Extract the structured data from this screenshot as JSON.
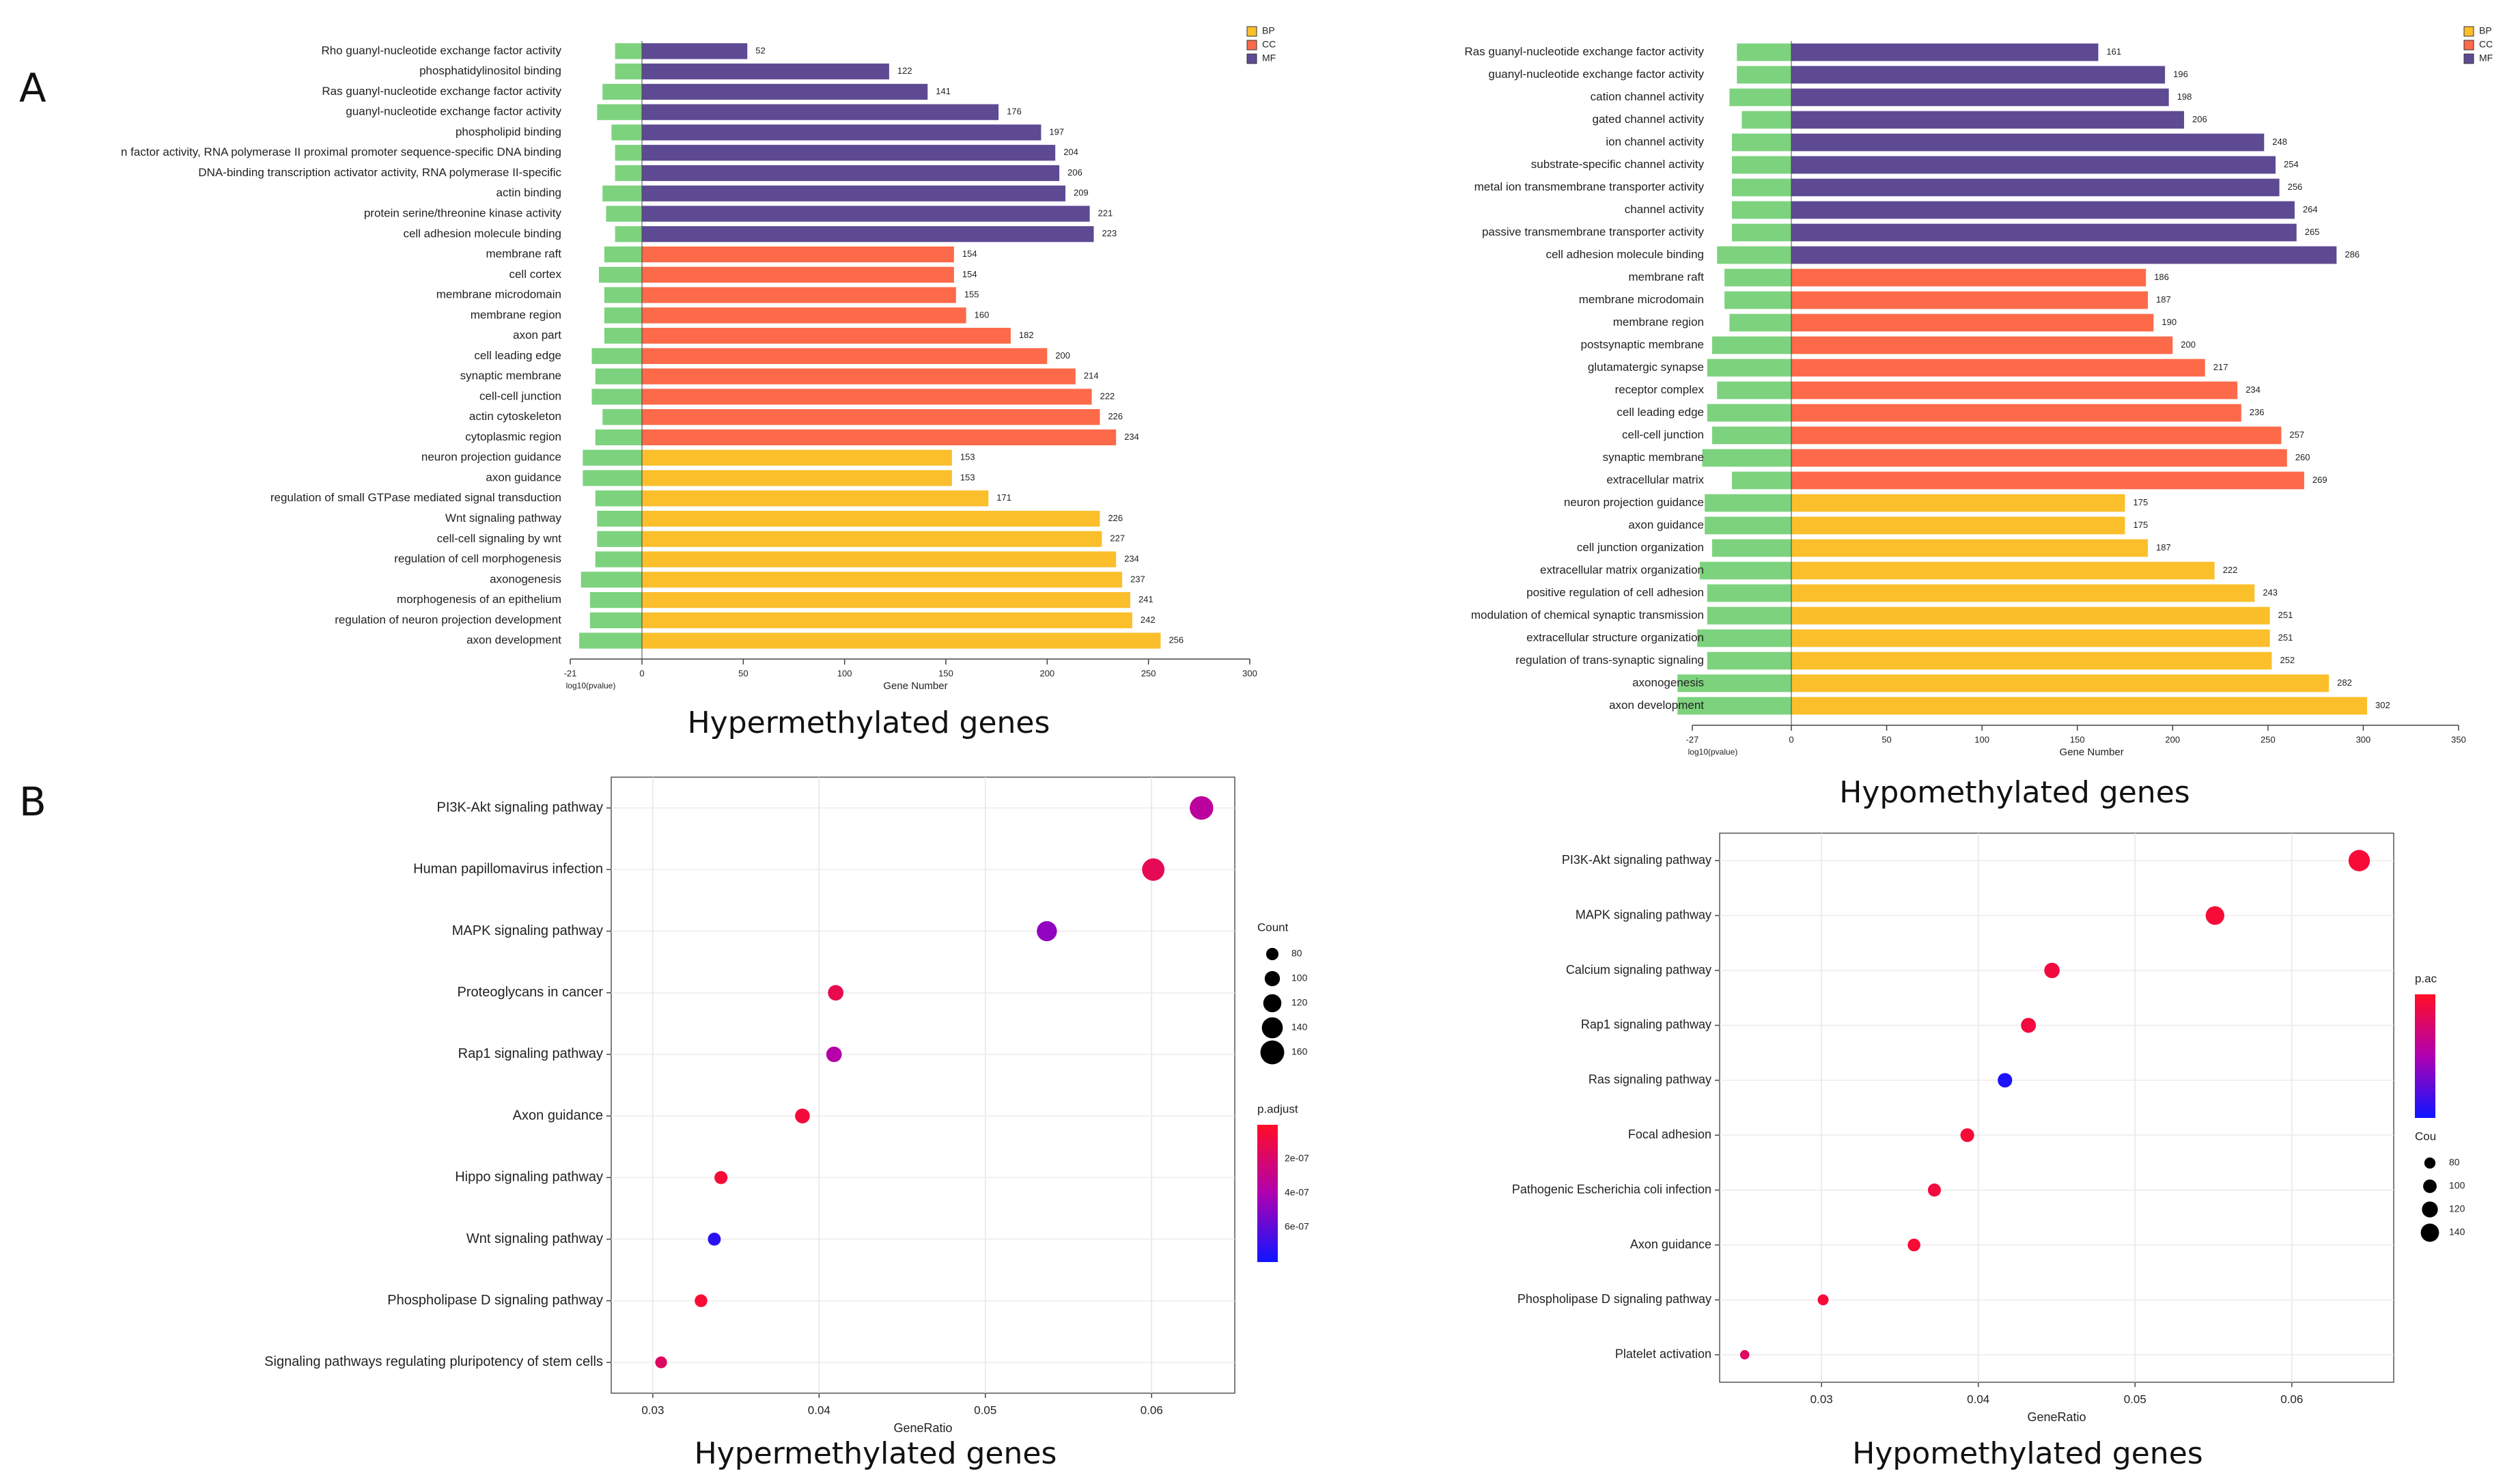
{
  "panel_labels": [
    "A",
    "B"
  ],
  "colors": {
    "bp": "#FBBF2C",
    "cc": "#FC6A49",
    "mf": "#5E4A93",
    "log_bar": "#7DD27E",
    "padj_high": "#FF0D2A",
    "padj_mid": "#B000B0",
    "padj_low": "#1414FF",
    "dot_border": "#888888"
  },
  "chart_data": [
    {
      "type": "bar",
      "panel": "A",
      "caption": "Hypermethylated genes",
      "xlabel": "Gene Number",
      "neg_axis_label": "log10(pvalue)",
      "neg_tick_label": "-21",
      "xlim": [
        0,
        300
      ],
      "xticks": [
        0,
        50,
        100,
        150,
        200,
        250,
        300
      ],
      "legend": [
        "BP",
        "CC",
        "MF"
      ],
      "legend_position": "top-right",
      "categories": [
        {
          "term": "Rho guanyl-nucleotide exchange factor activity",
          "group": "MF",
          "count": 52,
          "neglog": 15
        },
        {
          "term": "phosphatidylinositol binding",
          "group": "MF",
          "count": 122,
          "neglog": 15
        },
        {
          "term": "Ras guanyl-nucleotide exchange factor activity",
          "group": "MF",
          "count": 141,
          "neglog": 22
        },
        {
          "term": "guanyl-nucleotide exchange factor activity",
          "group": "MF",
          "count": 176,
          "neglog": 25
        },
        {
          "term": "phospholipid binding",
          "group": "MF",
          "count": 197,
          "neglog": 17
        },
        {
          "term": "n factor activity, RNA polymerase II proximal promoter sequence-specific DNA binding",
          "group": "MF",
          "count": 204,
          "neglog": 15
        },
        {
          "term": "DNA-binding transcription activator activity, RNA polymerase II-specific",
          "group": "MF",
          "count": 206,
          "neglog": 15
        },
        {
          "term": "actin binding",
          "group": "MF",
          "count": 209,
          "neglog": 22
        },
        {
          "term": "protein serine/threonine kinase activity",
          "group": "MF",
          "count": 221,
          "neglog": 20
        },
        {
          "term": "cell adhesion molecule binding",
          "group": "MF",
          "count": 223,
          "neglog": 15
        },
        {
          "term": "membrane raft",
          "group": "CC",
          "count": 154,
          "neglog": 21
        },
        {
          "term": "cell cortex",
          "group": "CC",
          "count": 154,
          "neglog": 24
        },
        {
          "term": "membrane microdomain",
          "group": "CC",
          "count": 155,
          "neglog": 21
        },
        {
          "term": "membrane region",
          "group": "CC",
          "count": 160,
          "neglog": 21
        },
        {
          "term": "axon part",
          "group": "CC",
          "count": 182,
          "neglog": 21
        },
        {
          "term": "cell leading edge",
          "group": "CC",
          "count": 200,
          "neglog": 28
        },
        {
          "term": "synaptic membrane",
          "group": "CC",
          "count": 214,
          "neglog": 26
        },
        {
          "term": "cell-cell junction",
          "group": "CC",
          "count": 222,
          "neglog": 28
        },
        {
          "term": "actin cytoskeleton",
          "group": "CC",
          "count": 226,
          "neglog": 22
        },
        {
          "term": "cytoplasmic region",
          "group": "CC",
          "count": 234,
          "neglog": 26
        },
        {
          "term": "neuron projection guidance",
          "group": "BP",
          "count": 153,
          "neglog": 33
        },
        {
          "term": "axon guidance",
          "group": "BP",
          "count": 153,
          "neglog": 33
        },
        {
          "term": "regulation of small GTPase mediated signal transduction",
          "group": "BP",
          "count": 171,
          "neglog": 26
        },
        {
          "term": "Wnt signaling pathway",
          "group": "BP",
          "count": 226,
          "neglog": 25
        },
        {
          "term": "cell-cell signaling by wnt",
          "group": "BP",
          "count": 227,
          "neglog": 25
        },
        {
          "term": "regulation of cell morphogenesis",
          "group": "BP",
          "count": 234,
          "neglog": 26
        },
        {
          "term": "axonogenesis",
          "group": "BP",
          "count": 237,
          "neglog": 34
        },
        {
          "term": "morphogenesis of an epithelium",
          "group": "BP",
          "count": 241,
          "neglog": 29
        },
        {
          "term": "regulation of neuron projection development",
          "group": "BP",
          "count": 242,
          "neglog": 29
        },
        {
          "term": "axon development",
          "group": "BP",
          "count": 256,
          "neglog": 35
        }
      ]
    },
    {
      "type": "bar",
      "panel": "A",
      "caption": "Hypomethylated genes",
      "xlabel": "Gene Number",
      "neg_axis_label": "log10(pvalue)",
      "neg_tick_label": "-27",
      "xlim": [
        0,
        350
      ],
      "xticks": [
        0,
        50,
        100,
        150,
        200,
        250,
        300,
        350
      ],
      "legend": [
        "BP",
        "CC",
        "MF"
      ],
      "legend_position": "top-right",
      "categories": [
        {
          "term": "Ras guanyl-nucleotide exchange factor activity",
          "group": "MF",
          "count": 161,
          "neglog": 22
        },
        {
          "term": "guanyl-nucleotide exchange factor activity",
          "group": "MF",
          "count": 196,
          "neglog": 22
        },
        {
          "term": "cation channel activity",
          "group": "MF",
          "count": 198,
          "neglog": 25
        },
        {
          "term": "gated channel activity",
          "group": "MF",
          "count": 206,
          "neglog": 20
        },
        {
          "term": "ion channel activity",
          "group": "MF",
          "count": 248,
          "neglog": 24
        },
        {
          "term": "substrate-specific channel activity",
          "group": "MF",
          "count": 254,
          "neglog": 24
        },
        {
          "term": "metal ion transmembrane transporter activity",
          "group": "MF",
          "count": 256,
          "neglog": 24
        },
        {
          "term": "channel activity",
          "group": "MF",
          "count": 264,
          "neglog": 24
        },
        {
          "term": "passive transmembrane transporter activity",
          "group": "MF",
          "count": 265,
          "neglog": 24
        },
        {
          "term": "cell adhesion molecule binding",
          "group": "MF",
          "count": 286,
          "neglog": 30
        },
        {
          "term": "membrane raft",
          "group": "CC",
          "count": 186,
          "neglog": 27
        },
        {
          "term": "membrane microdomain",
          "group": "CC",
          "count": 187,
          "neglog": 27
        },
        {
          "term": "membrane region",
          "group": "CC",
          "count": 190,
          "neglog": 25
        },
        {
          "term": "postsynaptic membrane",
          "group": "CC",
          "count": 200,
          "neglog": 32
        },
        {
          "term": "glutamatergic synapse",
          "group": "CC",
          "count": 217,
          "neglog": 34
        },
        {
          "term": "receptor complex",
          "group": "CC",
          "count": 234,
          "neglog": 30
        },
        {
          "term": "cell leading edge",
          "group": "CC",
          "count": 236,
          "neglog": 34
        },
        {
          "term": "cell-cell junction",
          "group": "CC",
          "count": 257,
          "neglog": 32
        },
        {
          "term": "synaptic membrane",
          "group": "CC",
          "count": 260,
          "neglog": 36
        },
        {
          "term": "extracellular matrix",
          "group": "CC",
          "count": 269,
          "neglog": 24
        },
        {
          "term": "neuron projection guidance",
          "group": "BP",
          "count": 175,
          "neglog": 35
        },
        {
          "term": "axon guidance",
          "group": "BP",
          "count": 175,
          "neglog": 35
        },
        {
          "term": "cell junction organization",
          "group": "BP",
          "count": 187,
          "neglog": 32
        },
        {
          "term": "extracellular matrix organization",
          "group": "BP",
          "count": 222,
          "neglog": 37
        },
        {
          "term": "positive regulation of cell adhesion",
          "group": "BP",
          "count": 243,
          "neglog": 34
        },
        {
          "term": "modulation of chemical synaptic transmission",
          "group": "BP",
          "count": 251,
          "neglog": 34
        },
        {
          "term": "extracellular structure organization",
          "group": "BP",
          "count": 251,
          "neglog": 38
        },
        {
          "term": "regulation of trans-synaptic signaling",
          "group": "BP",
          "count": 252,
          "neglog": 34
        },
        {
          "term": "axonogenesis",
          "group": "BP",
          "count": 282,
          "neglog": 46
        },
        {
          "term": "axon development",
          "group": "BP",
          "count": 302,
          "neglog": 46
        }
      ]
    },
    {
      "type": "scatter",
      "panel": "B",
      "caption": "Hypermethylated genes",
      "xlabel": "GeneRatio",
      "xlim": [
        0.0275,
        0.065
      ],
      "xticks": [
        0.03,
        0.04,
        0.05,
        0.06
      ],
      "xtick_labels": [
        "0.03",
        "0.04",
        "0.05",
        "0.06"
      ],
      "size_legend_title": "Count",
      "size_legend": [
        80,
        100,
        120,
        140,
        160
      ],
      "size_domain": [
        70,
        165
      ],
      "color_legend_title": "p.adjust",
      "color_legend_ticks": [
        "2e-07",
        "4e-07",
        "6e-07"
      ],
      "padj_range": [
        0,
        7.5e-07
      ],
      "points": [
        {
          "term": "PI3K-Akt signaling pathway",
          "ratio": 0.063,
          "count": 158,
          "padj": 3.2e-07
        },
        {
          "term": "Human papillomavirus infection",
          "ratio": 0.0601,
          "count": 150,
          "padj": 1.2e-07
        },
        {
          "term": "MAPK signaling pathway",
          "ratio": 0.0537,
          "count": 134,
          "padj": 4.5e-07
        },
        {
          "term": "Proteoglycans in cancer",
          "ratio": 0.041,
          "count": 102,
          "padj": 1e-07
        },
        {
          "term": "Rap1 signaling pathway",
          "ratio": 0.0409,
          "count": 102,
          "padj": 3.5e-07
        },
        {
          "term": "Axon guidance",
          "ratio": 0.039,
          "count": 97,
          "padj": 5e-08
        },
        {
          "term": "Hippo signaling pathway",
          "ratio": 0.0341,
          "count": 85,
          "padj": 4e-08
        },
        {
          "term": "Wnt signaling pathway",
          "ratio": 0.0337,
          "count": 84,
          "padj": 7e-07
        },
        {
          "term": "Phospholipase D signaling pathway",
          "ratio": 0.0329,
          "count": 82,
          "padj": 3e-08
        },
        {
          "term": "Signaling pathways regulating pluripotency of stem cells",
          "ratio": 0.0305,
          "count": 76,
          "padj": 1.5e-07
        }
      ]
    },
    {
      "type": "scatter",
      "panel": "B",
      "caption": "Hypomethylated genes",
      "xlabel": "GeneRatio",
      "xlim": [
        0.0235,
        0.0665
      ],
      "xticks": [
        0.03,
        0.04,
        0.05,
        0.06
      ],
      "xtick_labels": [
        "0.03",
        "0.04",
        "0.05",
        "0.06"
      ],
      "size_legend_title": "Cou",
      "size_legend": [
        80,
        100,
        120,
        140
      ],
      "size_domain": [
        55,
        170
      ],
      "color_legend_title": "p.ac",
      "color_legend_ticks": [],
      "padj_range": [
        0,
        1
      ],
      "points": [
        {
          "term": "PI3K-Akt signaling pathway",
          "ratio": 0.0643,
          "count": 166,
          "padj": 0.05
        },
        {
          "term": "MAPK signaling pathway",
          "ratio": 0.0551,
          "count": 143,
          "padj": 0.05
        },
        {
          "term": "Calcium signaling pathway",
          "ratio": 0.0447,
          "count": 116,
          "padj": 0.08
        },
        {
          "term": "Rap1 signaling pathway",
          "ratio": 0.0432,
          "count": 112,
          "padj": 0.08
        },
        {
          "term": "Ras signaling pathway",
          "ratio": 0.0417,
          "count": 108,
          "padj": 0.97
        },
        {
          "term": "Focal adhesion",
          "ratio": 0.0393,
          "count": 102,
          "padj": 0.05
        },
        {
          "term": "Pathogenic Escherichia coli infection",
          "ratio": 0.0372,
          "count": 96,
          "padj": 0.08
        },
        {
          "term": "Axon guidance",
          "ratio": 0.0359,
          "count": 93,
          "padj": 0.05
        },
        {
          "term": "Phospholipase D signaling pathway",
          "ratio": 0.0301,
          "count": 78,
          "padj": 0.05
        },
        {
          "term": "Platelet activation",
          "ratio": 0.0251,
          "count": 65,
          "padj": 0.2
        }
      ]
    }
  ]
}
